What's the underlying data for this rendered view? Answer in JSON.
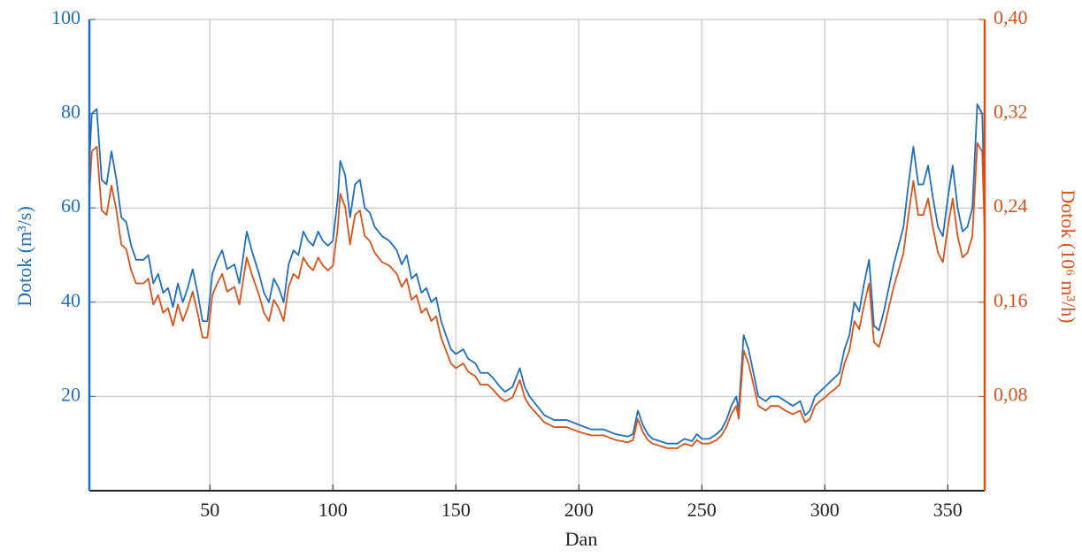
{
  "chart_data": {
    "type": "line",
    "xlabel": "Dan",
    "ylabel": "Dotok (m³/s)",
    "y2label": "Dotok (10⁶ m³/h)",
    "x": [
      1,
      2,
      4,
      6,
      8,
      10,
      12,
      14,
      16,
      18,
      20,
      23,
      25,
      27,
      29,
      31,
      33,
      35,
      37,
      39,
      41,
      43,
      45,
      47,
      49,
      51,
      53,
      55,
      57,
      60,
      62,
      65,
      67,
      70,
      72,
      74,
      76,
      78,
      80,
      82,
      84,
      86,
      88,
      90,
      92,
      94,
      96,
      98,
      100,
      102,
      103,
      105,
      107,
      109,
      111,
      113,
      115,
      117,
      120,
      123,
      126,
      128,
      130,
      132,
      134,
      136,
      138,
      140,
      142,
      144,
      146,
      148,
      150,
      153,
      155,
      158,
      160,
      163,
      165,
      168,
      170,
      173,
      176,
      178,
      180,
      183,
      186,
      190,
      195,
      200,
      205,
      210,
      215,
      220,
      222,
      224,
      226,
      228,
      230,
      233,
      236,
      240,
      243,
      246,
      248,
      250,
      253,
      256,
      258,
      260,
      262,
      264,
      265,
      267,
      269,
      271,
      273,
      276,
      278,
      281,
      284,
      287,
      290,
      292,
      294,
      296,
      298,
      300,
      302,
      304,
      306,
      308,
      310,
      312,
      314,
      316,
      318,
      320,
      322,
      324,
      326,
      328,
      330,
      332,
      334,
      336,
      338,
      340,
      342,
      344,
      346,
      348,
      350,
      352,
      354,
      356,
      358,
      360,
      362,
      364,
      365
    ],
    "series": [
      {
        "name": "Dotok (m³/s)",
        "color": "#1f6fbf",
        "values": [
          70,
          80,
          81,
          66,
          65,
          72,
          66,
          58,
          57,
          52,
          49,
          49,
          50,
          44,
          46,
          42,
          43,
          39,
          44,
          40,
          43,
          47,
          42,
          36,
          36,
          46,
          49,
          51,
          47,
          48,
          44,
          55,
          51,
          46,
          42,
          40,
          45,
          43,
          40,
          48,
          51,
          50,
          55,
          53,
          52,
          55,
          53,
          52,
          53,
          62,
          70,
          67,
          58,
          65,
          66,
          60,
          59,
          56,
          54,
          53,
          51,
          48,
          50,
          45,
          46,
          42,
          43,
          40,
          41,
          36,
          33,
          30,
          29,
          30,
          28,
          27,
          25,
          25,
          24,
          22,
          21,
          22,
          26,
          22,
          20,
          18,
          16,
          15,
          15,
          14,
          13,
          13,
          12,
          11.5,
          12,
          17,
          14,
          12,
          11,
          10.5,
          10,
          10,
          11,
          10.5,
          12,
          11,
          11,
          12,
          13,
          15,
          18,
          20,
          17,
          33,
          30,
          25,
          20,
          19,
          20,
          20,
          19,
          18,
          19,
          16,
          17,
          20,
          21,
          22,
          23,
          24,
          25,
          30,
          33,
          40,
          38,
          44,
          49,
          35,
          34,
          38,
          43,
          48,
          52,
          56,
          65,
          73,
          65,
          65,
          69,
          62,
          56,
          54,
          62,
          69,
          60,
          55,
          56,
          60,
          82,
          80,
          60
        ]
      },
      {
        "name": "Dotok (10⁶ m³/h)",
        "color": "#d95319",
        "axis": "y2",
        "values": [
          0.252,
          0.288,
          0.292,
          0.238,
          0.234,
          0.259,
          0.238,
          0.209,
          0.205,
          0.187,
          0.176,
          0.176,
          0.18,
          0.158,
          0.166,
          0.151,
          0.155,
          0.14,
          0.158,
          0.144,
          0.155,
          0.169,
          0.151,
          0.13,
          0.13,
          0.166,
          0.176,
          0.184,
          0.169,
          0.173,
          0.158,
          0.198,
          0.184,
          0.166,
          0.151,
          0.144,
          0.162,
          0.155,
          0.144,
          0.173,
          0.184,
          0.18,
          0.198,
          0.191,
          0.187,
          0.198,
          0.191,
          0.187,
          0.191,
          0.223,
          0.252,
          0.241,
          0.209,
          0.234,
          0.238,
          0.216,
          0.212,
          0.202,
          0.194,
          0.191,
          0.184,
          0.173,
          0.18,
          0.162,
          0.166,
          0.151,
          0.155,
          0.144,
          0.148,
          0.13,
          0.119,
          0.108,
          0.104,
          0.108,
          0.101,
          0.097,
          0.09,
          0.09,
          0.086,
          0.079,
          0.076,
          0.079,
          0.094,
          0.079,
          0.072,
          0.065,
          0.058,
          0.054,
          0.054,
          0.05,
          0.047,
          0.047,
          0.043,
          0.041,
          0.043,
          0.061,
          0.05,
          0.043,
          0.04,
          0.038,
          0.036,
          0.036,
          0.04,
          0.038,
          0.043,
          0.04,
          0.04,
          0.043,
          0.047,
          0.054,
          0.065,
          0.072,
          0.061,
          0.119,
          0.108,
          0.09,
          0.072,
          0.068,
          0.072,
          0.072,
          0.068,
          0.065,
          0.068,
          0.058,
          0.061,
          0.072,
          0.076,
          0.079,
          0.083,
          0.086,
          0.09,
          0.108,
          0.119,
          0.144,
          0.137,
          0.158,
          0.176,
          0.126,
          0.122,
          0.137,
          0.155,
          0.173,
          0.187,
          0.202,
          0.234,
          0.263,
          0.234,
          0.234,
          0.248,
          0.223,
          0.202,
          0.194,
          0.223,
          0.248,
          0.216,
          0.198,
          0.202,
          0.216,
          0.295,
          0.288,
          0.216
        ]
      }
    ],
    "xlim": [
      1,
      365
    ],
    "xticks": [
      50,
      100,
      150,
      200,
      250,
      300,
      350
    ],
    "ylim": [
      0,
      100
    ],
    "yticks": [
      20,
      40,
      60,
      80,
      100
    ],
    "y2lim": [
      0,
      0.4
    ],
    "y2ticks": [
      {
        "value": 0.08,
        "label": "0,08"
      },
      {
        "value": 0.16,
        "label": "0,16"
      },
      {
        "value": 0.24,
        "label": "0,24"
      },
      {
        "value": 0.32,
        "label": "0,32"
      },
      {
        "value": 0.4,
        "label": "0,40"
      }
    ],
    "grid": true
  }
}
